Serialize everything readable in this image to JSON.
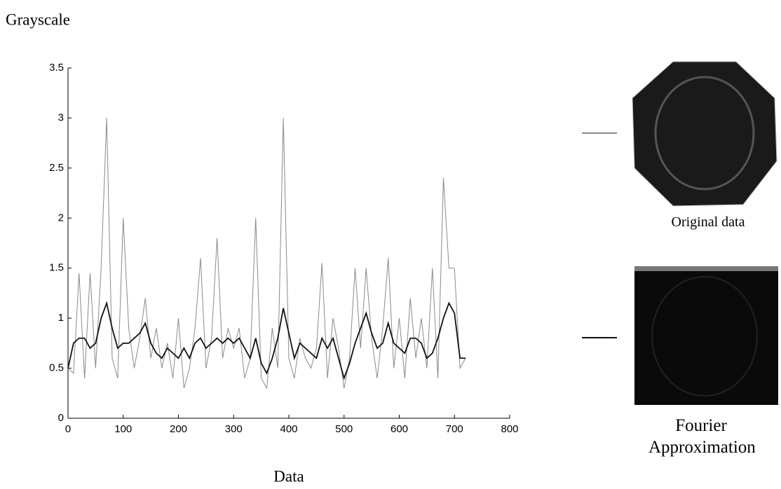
{
  "chart_data": {
    "type": "line",
    "y_label": "Grayscale",
    "x_label": "Data",
    "x": [
      0,
      10,
      20,
      30,
      40,
      50,
      60,
      70,
      80,
      90,
      100,
      110,
      120,
      130,
      140,
      150,
      160,
      170,
      180,
      190,
      200,
      210,
      220,
      230,
      240,
      250,
      260,
      270,
      280,
      290,
      300,
      310,
      320,
      330,
      340,
      350,
      360,
      370,
      380,
      390,
      400,
      410,
      420,
      430,
      440,
      450,
      460,
      470,
      480,
      490,
      500,
      510,
      520,
      530,
      540,
      550,
      560,
      570,
      580,
      590,
      600,
      610,
      620,
      630,
      640,
      650,
      660,
      670,
      680,
      690,
      700,
      710,
      720
    ],
    "series": [
      {
        "name": "Original data",
        "color": "#8a8a8a",
        "values": [
          0.5,
          0.45,
          1.45,
          0.4,
          1.45,
          0.5,
          1.5,
          3.0,
          0.6,
          0.4,
          2.0,
          0.9,
          0.5,
          0.8,
          1.2,
          0.6,
          0.9,
          0.5,
          0.75,
          0.4,
          1.0,
          0.3,
          0.5,
          0.9,
          1.6,
          0.5,
          0.8,
          1.8,
          0.6,
          0.9,
          0.7,
          0.9,
          0.4,
          0.6,
          2.0,
          0.4,
          0.3,
          0.9,
          0.5,
          3.0,
          0.6,
          0.4,
          0.8,
          0.6,
          0.5,
          0.7,
          1.55,
          0.4,
          1.0,
          0.7,
          0.3,
          0.6,
          1.5,
          0.7,
          1.5,
          0.8,
          0.4,
          0.9,
          1.6,
          0.5,
          1.0,
          0.4,
          1.2,
          0.6,
          1.0,
          0.5,
          1.5,
          0.4,
          2.4,
          1.5,
          1.5,
          0.5,
          0.6
        ]
      },
      {
        "name": "Fourier Approximation",
        "color": "#111111",
        "values": [
          0.5,
          0.75,
          0.8,
          0.8,
          0.7,
          0.75,
          1.0,
          1.15,
          0.9,
          0.7,
          0.75,
          0.75,
          0.8,
          0.85,
          0.95,
          0.75,
          0.65,
          0.6,
          0.7,
          0.65,
          0.6,
          0.7,
          0.6,
          0.75,
          0.8,
          0.7,
          0.75,
          0.8,
          0.75,
          0.8,
          0.75,
          0.8,
          0.7,
          0.6,
          0.8,
          0.55,
          0.45,
          0.6,
          0.8,
          1.1,
          0.85,
          0.6,
          0.75,
          0.7,
          0.65,
          0.6,
          0.8,
          0.7,
          0.8,
          0.6,
          0.4,
          0.55,
          0.75,
          0.9,
          1.05,
          0.85,
          0.7,
          0.75,
          0.95,
          0.75,
          0.7,
          0.65,
          0.8,
          0.8,
          0.75,
          0.6,
          0.65,
          0.8,
          1.0,
          1.15,
          1.05,
          0.6,
          0.6
        ]
      }
    ],
    "xlim": [
      0,
      800
    ],
    "xticks": [
      0,
      100,
      200,
      300,
      400,
      500,
      600,
      700,
      800
    ],
    "ylim": [
      0,
      3.5
    ],
    "yticks": [
      0,
      0.5,
      1,
      1.5,
      2,
      2.5,
      3,
      3.5
    ]
  }
}
